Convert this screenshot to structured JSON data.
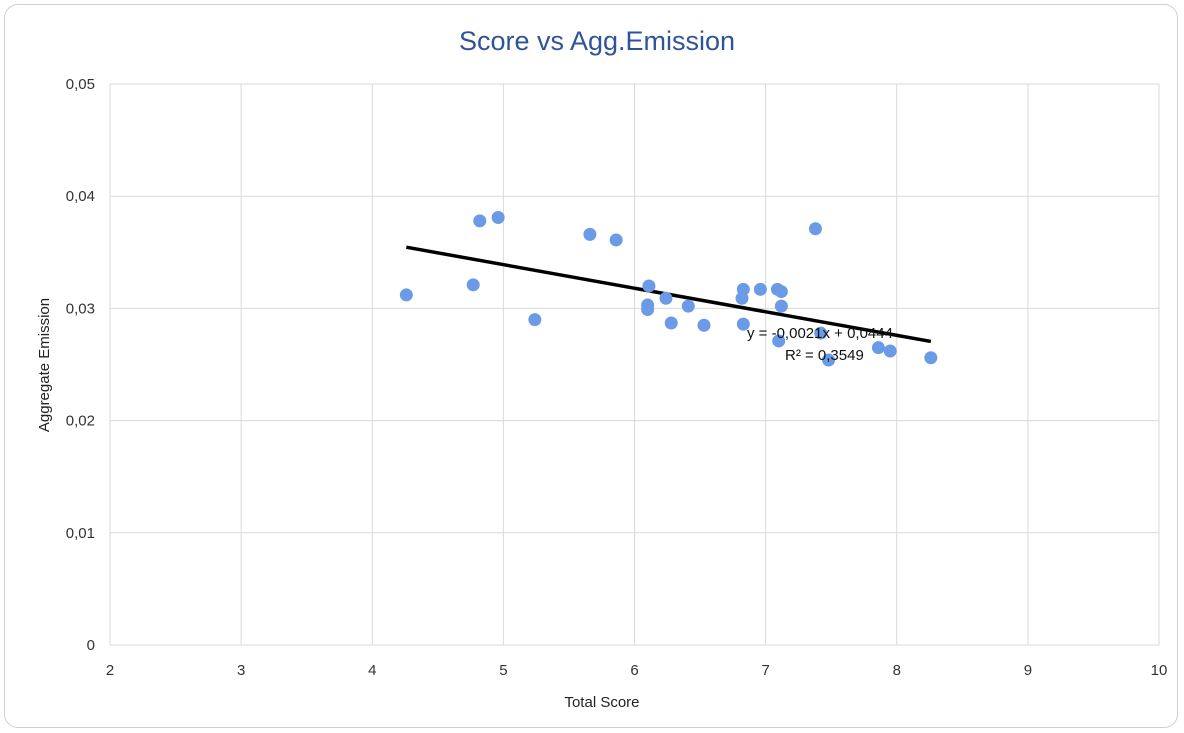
{
  "chart_data": {
    "type": "scatter",
    "title": "Score vs Agg.Emission",
    "xlabel": "Total Score",
    "ylabel": "Aggregate Emission",
    "xlim": [
      2,
      10
    ],
    "ylim": [
      0,
      0.05
    ],
    "x_ticks": [
      "2",
      "3",
      "4",
      "5",
      "6",
      "7",
      "8",
      "9",
      "10"
    ],
    "y_ticks": [
      "0",
      "0,01",
      "0,02",
      "0,03",
      "0,04",
      "0,05"
    ],
    "grid": true,
    "marker_color": "#6b9be6",
    "trendline_color": "#000000",
    "points": [
      {
        "x": 4.26,
        "y": 0.0312
      },
      {
        "x": 4.77,
        "y": 0.0321
      },
      {
        "x": 4.82,
        "y": 0.0378
      },
      {
        "x": 4.96,
        "y": 0.0381
      },
      {
        "x": 5.24,
        "y": 0.029
      },
      {
        "x": 5.66,
        "y": 0.0366
      },
      {
        "x": 5.86,
        "y": 0.0361
      },
      {
        "x": 6.1,
        "y": 0.0303
      },
      {
        "x": 6.1,
        "y": 0.0299
      },
      {
        "x": 6.11,
        "y": 0.032
      },
      {
        "x": 6.24,
        "y": 0.0309
      },
      {
        "x": 6.28,
        "y": 0.0287
      },
      {
        "x": 6.41,
        "y": 0.0302
      },
      {
        "x": 6.53,
        "y": 0.0285
      },
      {
        "x": 6.82,
        "y": 0.0309
      },
      {
        "x": 6.83,
        "y": 0.0317
      },
      {
        "x": 6.83,
        "y": 0.0286
      },
      {
        "x": 6.96,
        "y": 0.0317
      },
      {
        "x": 7.09,
        "y": 0.0317
      },
      {
        "x": 7.1,
        "y": 0.0271
      },
      {
        "x": 7.12,
        "y": 0.0315
      },
      {
        "x": 7.12,
        "y": 0.0302
      },
      {
        "x": 7.38,
        "y": 0.0371
      },
      {
        "x": 7.42,
        "y": 0.0278
      },
      {
        "x": 7.48,
        "y": 0.0254
      },
      {
        "x": 7.86,
        "y": 0.0265
      },
      {
        "x": 7.95,
        "y": 0.0262
      },
      {
        "x": 8.26,
        "y": 0.0256
      }
    ],
    "trendline": {
      "slope": -0.0021,
      "intercept": 0.0444,
      "x_range": [
        4.26,
        8.26
      ],
      "equation": "y = -0,0021x + 0,0444",
      "r_squared": "R² = 0,3549"
    }
  }
}
